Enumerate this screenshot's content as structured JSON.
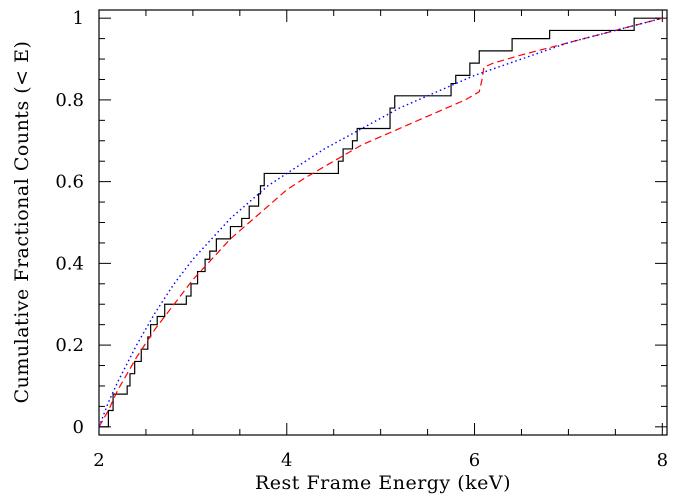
{
  "chart_data": {
    "type": "line",
    "title": "",
    "xlabel": "Rest Frame Energy (keV)",
    "ylabel": "Cumulative Fractional Counts (< E)",
    "xlim": [
      2,
      8.05
    ],
    "ylim": [
      -0.02,
      1.02
    ],
    "x_ticks": [
      2,
      4,
      6,
      8
    ],
    "x_tick_labels": [
      "2",
      "4",
      "6",
      "8"
    ],
    "y_ticks": [
      0,
      0.2,
      0.4,
      0.6,
      0.8,
      1
    ],
    "y_tick_labels": [
      "0",
      "0.2",
      "0.4",
      "0.6",
      "0.8",
      "1"
    ],
    "grid": false,
    "legend": "none",
    "series": [
      {
        "style": "solid-step",
        "color": "#000000",
        "x": [
          2.0,
          2.1,
          2.15,
          2.3,
          2.33,
          2.38,
          2.45,
          2.52,
          2.55,
          2.62,
          2.7,
          2.93,
          2.98,
          3.05,
          3.13,
          3.18,
          3.25,
          3.33,
          3.4,
          3.52,
          3.6,
          3.7,
          3.72,
          3.76,
          4.55,
          4.6,
          4.7,
          4.75,
          4.8,
          5.1,
          5.15,
          5.25,
          5.75,
          5.8,
          5.85,
          5.95,
          6.05,
          6.15,
          6.4,
          6.8,
          7.2,
          7.7,
          8.0
        ],
        "y": [
          0.0,
          0.04,
          0.08,
          0.1,
          0.13,
          0.16,
          0.19,
          0.22,
          0.25,
          0.27,
          0.3,
          0.32,
          0.35,
          0.38,
          0.41,
          0.43,
          0.46,
          0.46,
          0.49,
          0.51,
          0.54,
          0.57,
          0.59,
          0.62,
          0.65,
          0.68,
          0.7,
          0.73,
          0.73,
          0.78,
          0.81,
          0.81,
          0.84,
          0.86,
          0.86,
          0.89,
          0.92,
          0.92,
          0.95,
          0.97,
          0.97,
          1.0,
          1.0
        ]
      },
      {
        "style": "dashed",
        "color": "#ff0000",
        "x": [
          2.0,
          2.1,
          2.2,
          2.4,
          2.6,
          2.8,
          3.0,
          3.2,
          3.4,
          3.6,
          3.8,
          4.0,
          4.2,
          4.5,
          4.8,
          5.0,
          5.3,
          5.6,
          5.9,
          6.05,
          6.08,
          6.1,
          6.2,
          6.5,
          7.0,
          7.5,
          8.0
        ],
        "y": [
          0.0,
          0.04,
          0.09,
          0.17,
          0.24,
          0.3,
          0.36,
          0.41,
          0.46,
          0.5,
          0.54,
          0.58,
          0.61,
          0.65,
          0.69,
          0.71,
          0.74,
          0.77,
          0.8,
          0.82,
          0.85,
          0.88,
          0.89,
          0.91,
          0.94,
          0.97,
          1.0
        ]
      },
      {
        "style": "dotted",
        "color": "#0000ff",
        "x": [
          2.0,
          2.1,
          2.2,
          2.4,
          2.6,
          2.8,
          3.0,
          3.2,
          3.4,
          3.6,
          3.8,
          4.0,
          4.4,
          4.8,
          5.2,
          5.6,
          6.0,
          6.5,
          7.0,
          7.5,
          8.0
        ],
        "y": [
          0.0,
          0.06,
          0.11,
          0.2,
          0.28,
          0.35,
          0.41,
          0.46,
          0.51,
          0.55,
          0.59,
          0.62,
          0.68,
          0.73,
          0.78,
          0.82,
          0.86,
          0.9,
          0.94,
          0.97,
          1.0
        ]
      }
    ]
  }
}
